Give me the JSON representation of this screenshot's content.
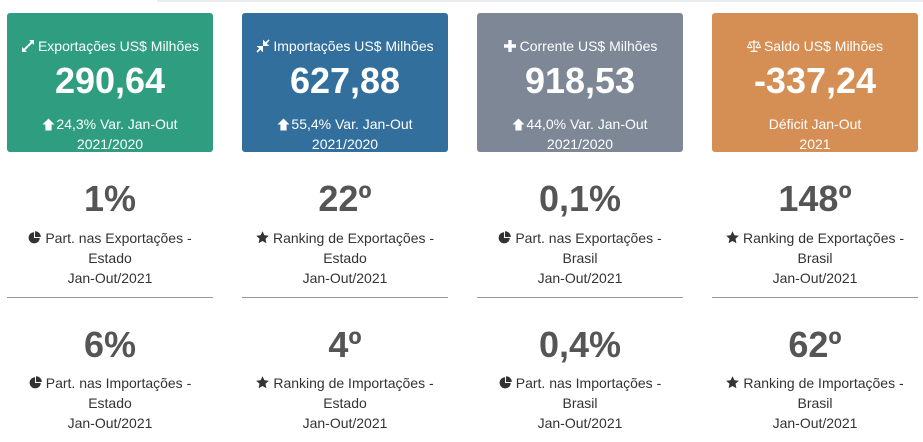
{
  "cards": [
    {
      "title": "Exportações US$ Milhões",
      "icon": "expand-arrows-icon",
      "value": "290,64",
      "note_line1": "24,3% Var. Jan-Out",
      "note_line2": "2021/2020",
      "has_up_arrow": true,
      "color": "#2f9e80"
    },
    {
      "title": "Importações US$ Milhões",
      "icon": "compress-arrows-icon",
      "value": "627,88",
      "note_line1": "55,4% Var. Jan-Out",
      "note_line2": "2021/2020",
      "has_up_arrow": true,
      "color": "#336f9c"
    },
    {
      "title": "Corrente US$ Milhões",
      "icon": "plus-icon",
      "value": "918,53",
      "note_line1": "44,0% Var. Jan-Out",
      "note_line2": "2021/2020",
      "has_up_arrow": true,
      "color": "#7d8796"
    },
    {
      "title": "Saldo US$ Milhões",
      "icon": "balance-scale-icon",
      "value": "-337,24",
      "note_line1": "Déficit Jan-Out",
      "note_line2": "2021",
      "has_up_arrow": false,
      "color": "#d58f55"
    }
  ],
  "stats_row1": [
    {
      "value": "1%",
      "icon": "pie-chart-icon",
      "line1": "Part. nas Exportações -",
      "line2": "Estado",
      "line3": "Jan-Out/2021"
    },
    {
      "value": "22º",
      "icon": "star-icon",
      "line1": "Ranking de Exportações -",
      "line2": "Estado",
      "line3": "Jan-Out/2021"
    },
    {
      "value": "0,1%",
      "icon": "pie-chart-icon",
      "line1": "Part. nas Exportações -",
      "line2": "Brasil",
      "line3": "Jan-Out/2021"
    },
    {
      "value": "148º",
      "icon": "star-icon",
      "line1": "Ranking de Exportações -",
      "line2": "Brasil",
      "line3": "Jan-Out/2021"
    }
  ],
  "stats_row2": [
    {
      "value": "6%",
      "icon": "pie-chart-icon",
      "line1": "Part. nas Importações -",
      "line2": "Estado",
      "line3": "Jan-Out/2021"
    },
    {
      "value": "4º",
      "icon": "star-icon",
      "line1": "Ranking de Importações -",
      "line2": "Estado",
      "line3": "Jan-Out/2021"
    },
    {
      "value": "0,4%",
      "icon": "pie-chart-icon",
      "line1": "Part. nas Importações -",
      "line2": "Brasil",
      "line3": "Jan-Out/2021"
    },
    {
      "value": "62º",
      "icon": "star-icon",
      "line1": "Ranking de Importações -",
      "line2": "Brasil",
      "line3": "Jan-Out/2021"
    }
  ]
}
